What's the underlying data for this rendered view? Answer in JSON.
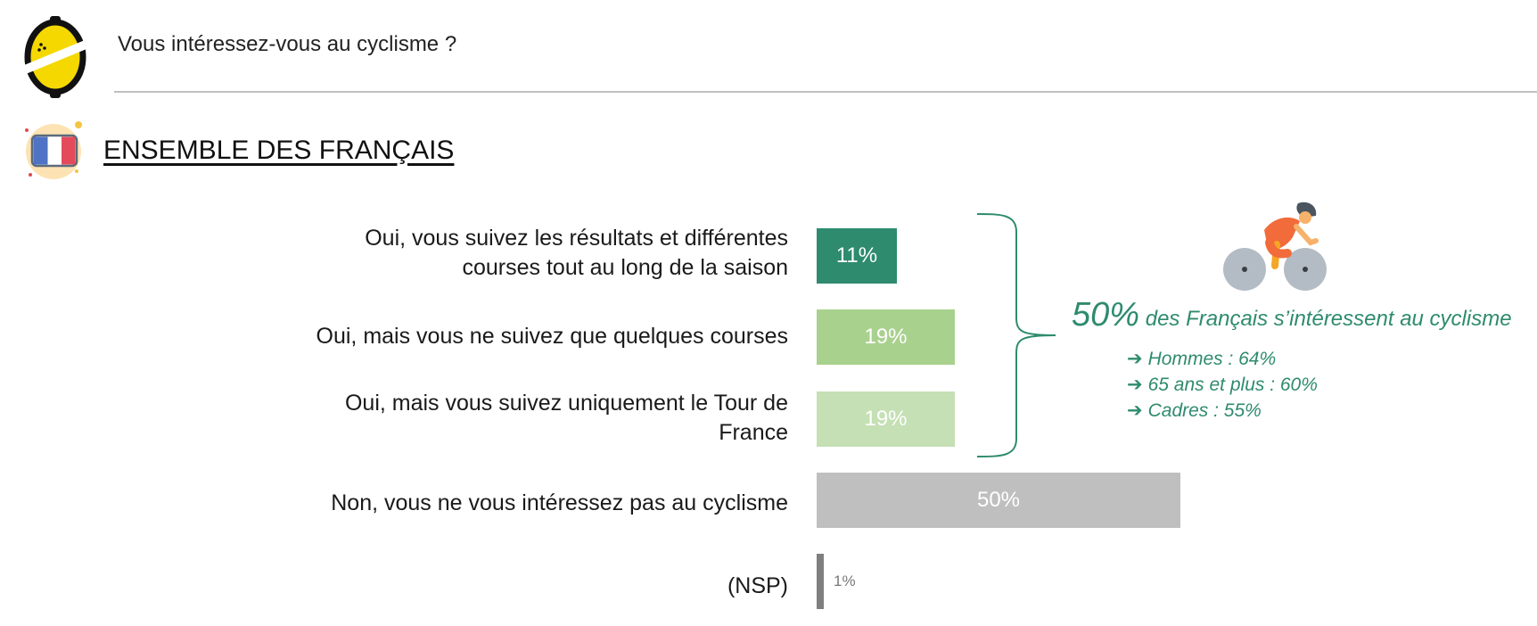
{
  "question": "Vous intéressez-vous au cyclisme ?",
  "section_title": "ENSEMBLE DES FRANÇAIS",
  "colors": {
    "dark_green": "#2e8b6e",
    "mid_green": "#a9d18e",
    "light_green": "#c5e0b4",
    "grey": "#bfbfbf",
    "dark_grey": "#7f7f7f"
  },
  "icons": [
    "logo-icon",
    "france-flag-icon",
    "cyclist-icon",
    "arrow-right-icon"
  ],
  "chart_data": {
    "type": "bar",
    "orientation": "horizontal",
    "categories": [
      "Oui, vous suivez les résultats et différentes courses tout au long de la saison",
      "Oui, mais vous ne suivez que quelques courses",
      "Oui, mais vous suivez uniquement le Tour de France",
      "Non, vous ne vous intéressez pas au cyclisme",
      "(NSP)"
    ],
    "values": [
      11,
      19,
      19,
      50,
      1
    ],
    "value_labels": [
      "11%",
      "19%",
      "19%",
      "50%",
      "1%"
    ],
    "unit": "%",
    "xlim": [
      0,
      50
    ],
    "grid": false,
    "legend": false
  },
  "summary": {
    "big_value": "50%",
    "text": " des Français s’intéressent au cyclisme",
    "details": [
      "Hommes : 64%",
      "65 ans et plus : 60%",
      "Cadres : 55%"
    ]
  }
}
